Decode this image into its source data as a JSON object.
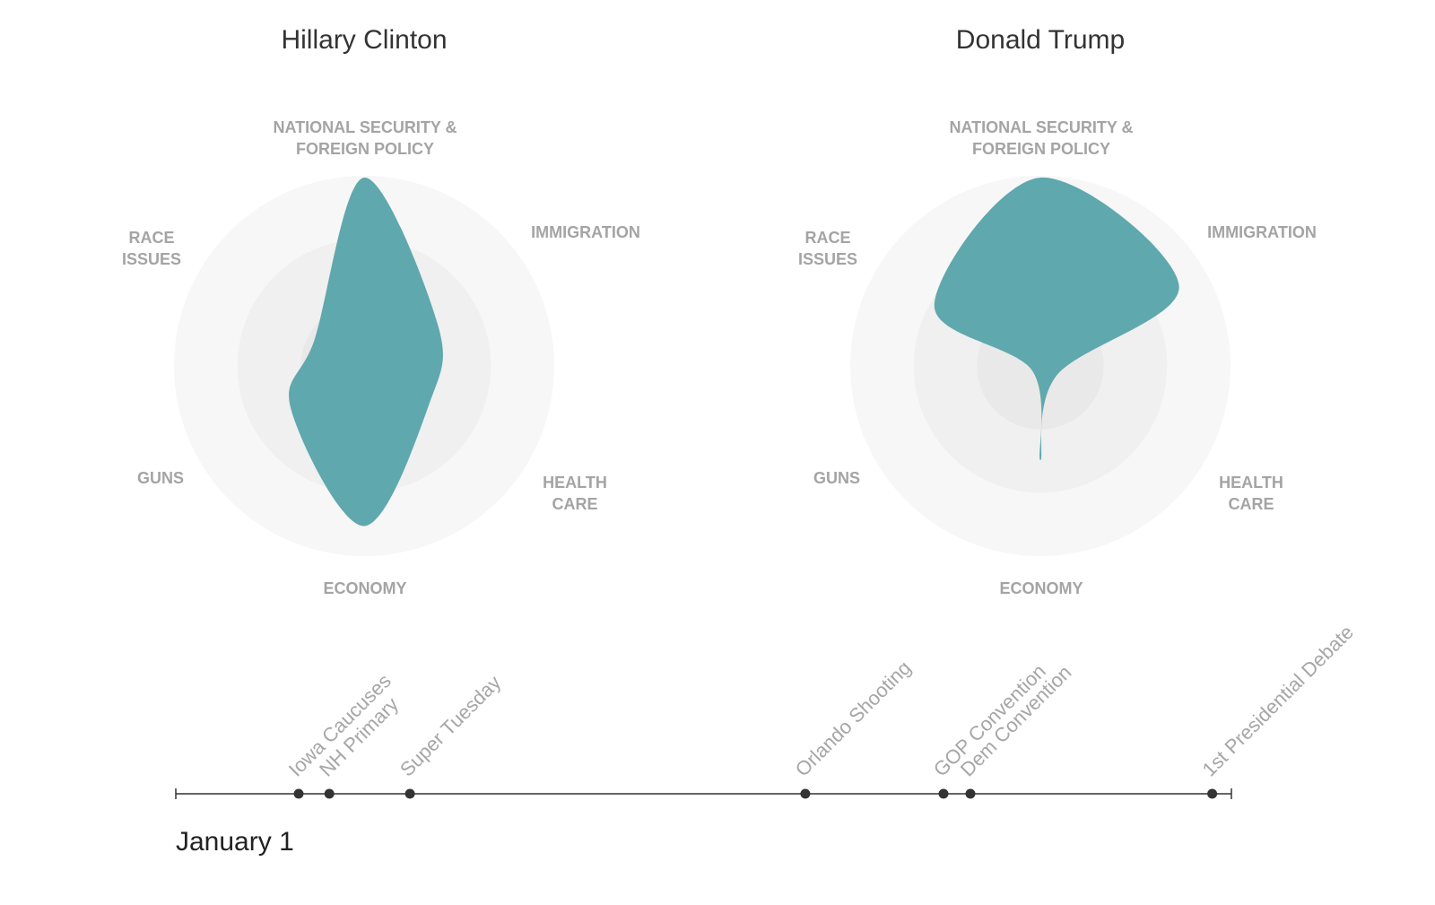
{
  "chart_data": [
    {
      "type": "radar",
      "title": "Hillary Clinton",
      "axes": [
        "NATIONAL SECURITY &\nFOREIGN POLICY",
        "IMMIGRATION",
        "HEALTH\nCARE",
        "ECONOMY",
        "GUNS",
        "RACE\nISSUES"
      ],
      "values": [
        1.0,
        0.45,
        0.4,
        0.85,
        0.45,
        0.3
      ],
      "rings": 3,
      "fill_color": "#5fa8ad"
    },
    {
      "type": "radar",
      "title": "Donald Trump",
      "axes": [
        "NATIONAL SECURITY &\nFOREIGN POLICY",
        "IMMIGRATION",
        "HEALTH\nCARE",
        "ECONOMY",
        "GUNS",
        "RACE\nISSUES"
      ],
      "values": [
        1.0,
        0.85,
        0.1,
        0.5,
        0.05,
        0.65
      ],
      "rings": 3,
      "fill_color": "#5fa8ad"
    }
  ],
  "timeline": {
    "start_label": "January 1",
    "events": [
      {
        "label": "Iowa Caucuses",
        "day": 32
      },
      {
        "label": "NH Primary",
        "day": 40
      },
      {
        "label": "Super Tuesday",
        "day": 61
      },
      {
        "label": "Orlando Shooting",
        "day": 164
      },
      {
        "label": "GOP Convention",
        "day": 200
      },
      {
        "label": "Dem Convention",
        "day": 207
      },
      {
        "label": "1st Presidential Debate",
        "day": 270
      }
    ],
    "end_day": 275
  },
  "colors": {
    "fill": "#5fa8ad",
    "ring_outer": "#f7f7f7",
    "ring_middle": "#f0f0f0",
    "ring_inner": "#e9e9e9",
    "axis_label": "#a4a4a4",
    "timeline": "#333333"
  }
}
